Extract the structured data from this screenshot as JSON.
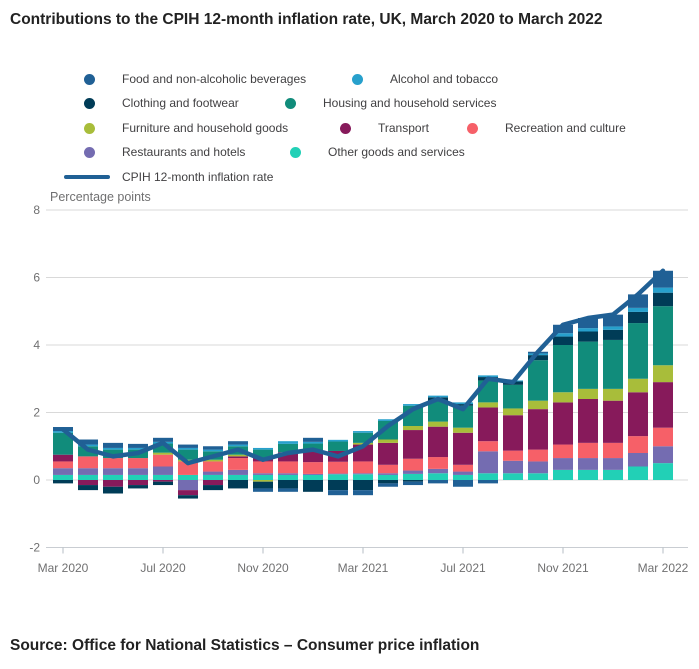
{
  "header": {
    "title": "Contributions to the CPIH 12-month inflation rate, UK, March 2020 to March 2022"
  },
  "footer": {
    "source": "Source: Office for National Statistics – Consumer price inflation"
  },
  "chart_data": {
    "type": "bar",
    "subtype": "stacked-columns-with-overlaid-line",
    "title": "Contributions to the CPIH 12-month inflation rate, UK, March 2020 to March 2022",
    "ylabel": "Percentage points",
    "ylim": [
      -2,
      8
    ],
    "y_ticks": [
      8,
      6,
      4,
      2,
      0,
      -2
    ],
    "grid": true,
    "legend_position": "top",
    "categories": [
      "Mar 2020",
      "Apr 2020",
      "May 2020",
      "Jun 2020",
      "Jul 2020",
      "Aug 2020",
      "Sep 2020",
      "Oct 2020",
      "Nov 2020",
      "Dec 2020",
      "Jan 2021",
      "Feb 2021",
      "Mar 2021",
      "Apr 2021",
      "May 2021",
      "Jun 2021",
      "Jul 2021",
      "Aug 2021",
      "Sep 2021",
      "Oct 2021",
      "Nov 2021",
      "Dec 2021",
      "Jan 2022",
      "Feb 2022",
      "Mar 2022"
    ],
    "x_tick_labels": [
      "Mar 2020",
      "Jul 2020",
      "Nov 2020",
      "Mar 2021",
      "Jul 2021",
      "Nov 2021",
      "Mar 2022"
    ],
    "series": [
      {
        "key": "food",
        "name": "Food and non-alcoholic beverages",
        "color": "#206095",
        "values": [
          0.12,
          0.15,
          0.15,
          0.12,
          0.12,
          0.1,
          0.1,
          0.1,
          -0.1,
          -0.1,
          0.12,
          -0.15,
          -0.15,
          -0.1,
          -0.1,
          -0.1,
          -0.2,
          -0.1,
          0.0,
          0.05,
          0.25,
          0.3,
          0.35,
          0.4,
          0.5
        ]
      },
      {
        "key": "alcohol",
        "name": "Alcohol and tobacco",
        "color": "#27a0cc",
        "values": [
          0.05,
          0.05,
          0.05,
          0.05,
          0.05,
          0.05,
          0.05,
          0.05,
          0.05,
          0.08,
          0.05,
          0.05,
          0.05,
          0.05,
          0.05,
          0.05,
          0.05,
          0.05,
          0.03,
          0.05,
          0.1,
          0.1,
          0.1,
          0.12,
          0.15
        ]
      },
      {
        "key": "clothing",
        "name": "Clothing and footwear",
        "color": "#003c57",
        "values": [
          -0.1,
          -0.15,
          -0.2,
          -0.1,
          -0.1,
          -0.1,
          -0.15,
          -0.25,
          -0.2,
          -0.25,
          -0.35,
          -0.3,
          -0.3,
          -0.1,
          -0.05,
          0.1,
          0.05,
          0.1,
          0.1,
          0.15,
          0.25,
          0.3,
          0.3,
          0.33,
          0.4
        ]
      },
      {
        "key": "housing",
        "name": "Housing and household services",
        "color": "#118c7b",
        "values": [
          0.65,
          0.3,
          0.25,
          0.25,
          0.27,
          0.3,
          0.25,
          0.25,
          0.25,
          0.25,
          0.25,
          0.28,
          0.3,
          0.55,
          0.6,
          0.62,
          0.65,
          0.65,
          0.7,
          1.2,
          1.4,
          1.4,
          1.45,
          1.65,
          1.75
        ]
      },
      {
        "key": "furniture",
        "name": "Furniture and household goods",
        "color": "#a8bd3a",
        "values": [
          0.0,
          0.0,
          0.0,
          0.0,
          0.06,
          0.05,
          0.05,
          0.05,
          -0.05,
          0.0,
          0.0,
          0.0,
          0.05,
          0.1,
          0.12,
          0.15,
          0.15,
          0.15,
          0.2,
          0.25,
          0.3,
          0.3,
          0.35,
          0.4,
          0.5
        ]
      },
      {
        "key": "transport",
        "name": "Transport",
        "color": "#871a5b",
        "values": [
          0.2,
          -0.15,
          -0.2,
          -0.15,
          -0.05,
          -0.15,
          -0.15,
          0.05,
          0.1,
          0.27,
          0.3,
          0.32,
          0.5,
          0.65,
          0.85,
          0.9,
          0.95,
          1.0,
          1.05,
          1.2,
          1.25,
          1.3,
          1.25,
          1.3,
          1.35
        ]
      },
      {
        "key": "recreation",
        "name": "Recreation and culture",
        "color": "#f66068",
        "values": [
          0.2,
          0.35,
          0.3,
          0.3,
          0.35,
          0.4,
          0.3,
          0.35,
          0.35,
          0.35,
          0.35,
          0.35,
          0.35,
          0.25,
          0.35,
          0.35,
          0.2,
          0.3,
          0.3,
          0.35,
          0.4,
          0.45,
          0.45,
          0.5,
          0.55
        ]
      },
      {
        "key": "restaurants",
        "name": "Restaurants and hotels",
        "color": "#746cb1",
        "values": [
          0.2,
          0.2,
          0.2,
          0.2,
          0.25,
          -0.3,
          0.1,
          0.15,
          0.05,
          0.05,
          0.03,
          0.02,
          0.03,
          0.05,
          0.1,
          0.13,
          0.1,
          0.65,
          0.37,
          0.35,
          0.35,
          0.35,
          0.35,
          0.4,
          0.5
        ]
      },
      {
        "key": "other",
        "name": "Other goods and services",
        "color": "#22d0b6",
        "values": [
          0.15,
          0.15,
          0.15,
          0.15,
          0.15,
          0.15,
          0.15,
          0.15,
          0.15,
          0.15,
          0.15,
          0.17,
          0.17,
          0.15,
          0.18,
          0.2,
          0.15,
          0.2,
          0.2,
          0.2,
          0.3,
          0.3,
          0.3,
          0.4,
          0.5
        ]
      }
    ],
    "line": {
      "key": "cpih",
      "name": "CPIH 12-month inflation rate",
      "color": "#206095",
      "values": [
        1.5,
        0.9,
        0.7,
        0.8,
        1.1,
        0.5,
        0.7,
        0.9,
        0.6,
        0.8,
        0.9,
        0.7,
        1.0,
        1.6,
        2.1,
        2.4,
        2.1,
        3.0,
        2.9,
        3.8,
        4.6,
        4.8,
        4.9,
        5.5,
        6.2
      ]
    },
    "colors": {
      "grid": "#d9d9d9",
      "axis": "#c9cdd2",
      "tick": "#b6bcc4",
      "tick_text": "#707071",
      "title_text": "#222222",
      "legend_text": "#414042"
    }
  }
}
